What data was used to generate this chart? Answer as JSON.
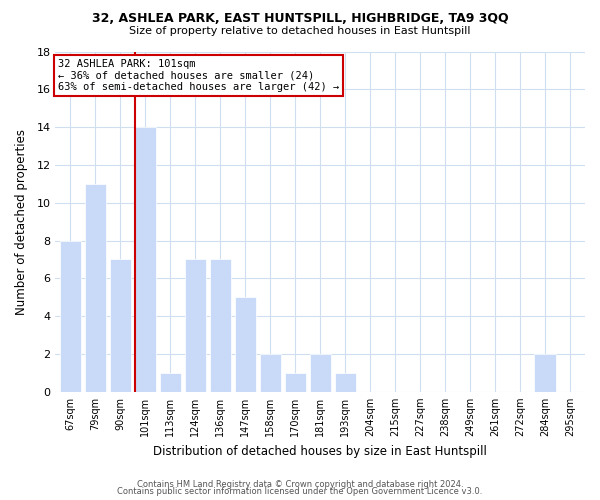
{
  "title": "32, ASHLEA PARK, EAST HUNTSPILL, HIGHBRIDGE, TA9 3QQ",
  "subtitle": "Size of property relative to detached houses in East Huntspill",
  "xlabel": "Distribution of detached houses by size in East Huntspill",
  "ylabel": "Number of detached properties",
  "bin_labels": [
    "67sqm",
    "79sqm",
    "90sqm",
    "101sqm",
    "113sqm",
    "124sqm",
    "136sqm",
    "147sqm",
    "158sqm",
    "170sqm",
    "181sqm",
    "193sqm",
    "204sqm",
    "215sqm",
    "227sqm",
    "238sqm",
    "249sqm",
    "261sqm",
    "272sqm",
    "284sqm",
    "295sqm"
  ],
  "bar_values": [
    8,
    11,
    7,
    14,
    1,
    7,
    7,
    5,
    2,
    1,
    2,
    1,
    0,
    0,
    0,
    0,
    0,
    0,
    0,
    2,
    0
  ],
  "bar_color": "#c9daf8",
  "bar_edge_color": "#ffffff",
  "reference_line_x_label": "101sqm",
  "reference_line_color": "#cc0000",
  "annotation_text": "32 ASHLEA PARK: 101sqm\n← 36% of detached houses are smaller (24)\n63% of semi-detached houses are larger (42) →",
  "annotation_box_edge": "#cc0000",
  "ylim": [
    0,
    18
  ],
  "yticks": [
    0,
    2,
    4,
    6,
    8,
    10,
    12,
    14,
    16,
    18
  ],
  "footer_line1": "Contains HM Land Registry data © Crown copyright and database right 2024.",
  "footer_line2": "Contains public sector information licensed under the Open Government Licence v3.0.",
  "bg_color": "#ffffff",
  "grid_color": "#d0dff0"
}
